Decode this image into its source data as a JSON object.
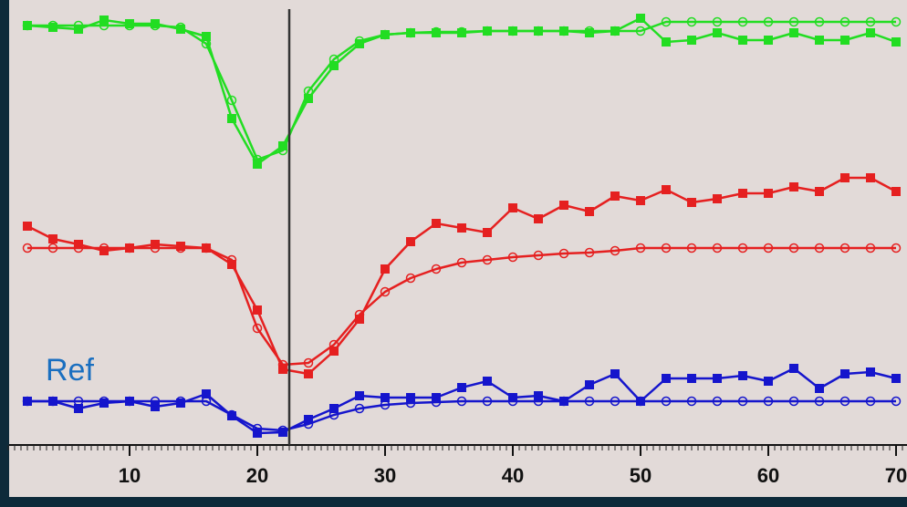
{
  "chart_data": {
    "type": "line",
    "annotation": "Ref",
    "x": [
      2,
      4,
      6,
      8,
      10,
      12,
      14,
      16,
      18,
      20,
      22,
      24,
      26,
      28,
      30,
      32,
      34,
      36,
      38,
      40,
      42,
      44,
      46,
      48,
      50,
      52,
      54,
      56,
      58,
      60,
      62,
      64,
      66,
      68,
      70
    ],
    "xlim": [
      0.5,
      70.8
    ],
    "xticks": [
      10,
      20,
      30,
      40,
      50,
      60,
      70
    ],
    "xminor": 0.5,
    "ylim": [
      0,
      478
    ],
    "cursor_x": 22.5,
    "series": [
      {
        "color": "#22dd22",
        "marker": "square",
        "values": [
          450,
          448,
          446,
          456,
          452,
          452,
          446,
          438,
          348,
          298,
          318,
          370,
          406,
          430,
          440,
          442,
          442,
          442,
          444,
          444,
          444,
          444,
          442,
          444,
          458,
          432,
          434,
          442,
          434,
          434,
          442,
          434,
          434,
          442,
          432
        ]
      },
      {
        "color": "#22dd22",
        "marker": "circle",
        "values": [
          450,
          450,
          450,
          450,
          450,
          450,
          448,
          430,
          368,
          303,
          313,
          378,
          413,
          433,
          440,
          442,
          443,
          443,
          444,
          444,
          444,
          444,
          444,
          444,
          444,
          454,
          454,
          454,
          454,
          454,
          454,
          454,
          454,
          454,
          454
        ]
      },
      {
        "color": "#e52020",
        "marker": "square",
        "values": [
          230,
          216,
          210,
          203,
          206,
          210,
          208,
          206,
          188,
          138,
          73,
          68,
          93,
          128,
          183,
          213,
          233,
          228,
          223,
          250,
          238,
          253,
          246,
          263,
          258,
          270,
          256,
          260,
          266,
          266,
          273,
          268,
          283,
          283,
          268
        ]
      },
      {
        "color": "#e52020",
        "marker": "circle",
        "values": [
          206,
          206,
          206,
          206,
          206,
          206,
          206,
          206,
          193,
          118,
          78,
          80,
          100,
          133,
          158,
          173,
          183,
          190,
          193,
          196,
          198,
          200,
          201,
          203,
          206,
          206,
          206,
          206,
          206,
          206,
          206,
          206,
          206,
          206,
          206
        ]
      },
      {
        "color": "#1515cc",
        "marker": "square",
        "values": [
          38,
          38,
          30,
          36,
          38,
          32,
          36,
          46,
          22,
          3,
          4,
          18,
          30,
          44,
          42,
          42,
          42,
          53,
          60,
          42,
          44,
          38,
          56,
          68,
          38,
          63,
          63,
          63,
          66,
          60,
          74,
          52,
          68,
          70,
          63
        ]
      },
      {
        "color": "#1515cc",
        "marker": "circle",
        "values": [
          38,
          38,
          38,
          38,
          38,
          38,
          38,
          38,
          23,
          8,
          6,
          13,
          23,
          30,
          34,
          36,
          37,
          38,
          38,
          38,
          38,
          38,
          38,
          38,
          38,
          38,
          38,
          38,
          38,
          38,
          38,
          38,
          38,
          38,
          38
        ]
      }
    ]
  }
}
